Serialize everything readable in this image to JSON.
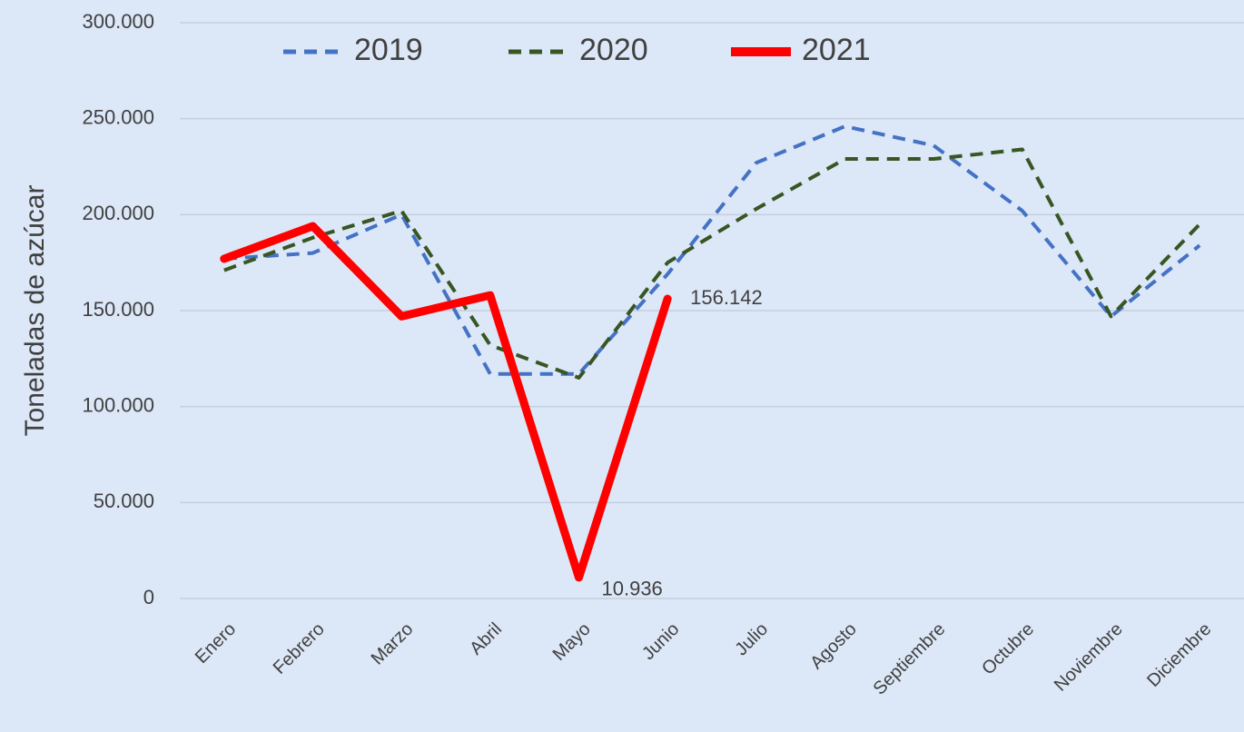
{
  "chart_data": {
    "type": "line",
    "y_label": "Toneladas de azúcar",
    "categories": [
      "Enero",
      "Febrero",
      "Marzo",
      "Abril",
      "Mayo",
      "Junio",
      "Julio",
      "Agosto",
      "Septiembre",
      "Octubre",
      "Noviembre",
      "Diciembre"
    ],
    "series": [
      {
        "name": "2019",
        "color": "#4472c4",
        "dash": true,
        "values": [
          177000,
          180000,
          200000,
          117000,
          117000,
          169000,
          227000,
          246000,
          236000,
          202000,
          147000,
          184000
        ]
      },
      {
        "name": "2020",
        "color": "#375623",
        "dash": true,
        "values": [
          171000,
          188000,
          202000,
          132000,
          115000,
          175000,
          203000,
          229000,
          229000,
          234000,
          147000,
          195000
        ]
      },
      {
        "name": "2021",
        "color": "#ff0000",
        "dash": false,
        "values": [
          177000,
          194000,
          147000,
          158000,
          10936,
          156142,
          null,
          null,
          null,
          null,
          null,
          null
        ],
        "value_labels": [
          null,
          null,
          null,
          null,
          "10.936",
          "156.142",
          null,
          null,
          null,
          null,
          null,
          null
        ]
      }
    ],
    "ylim": [
      0,
      300000
    ],
    "yticks": [
      0,
      {
        "value": 50000,
        "label": "50.000"
      },
      {
        "value": 100000,
        "label": "100.000"
      },
      {
        "value": 150000,
        "label": "150.000"
      },
      {
        "value": 200000,
        "label": "200.000"
      },
      {
        "value": 250000,
        "label": "250.000"
      },
      {
        "value": 300000,
        "label": "300.000"
      }
    ],
    "grid": true,
    "legend": "top"
  }
}
